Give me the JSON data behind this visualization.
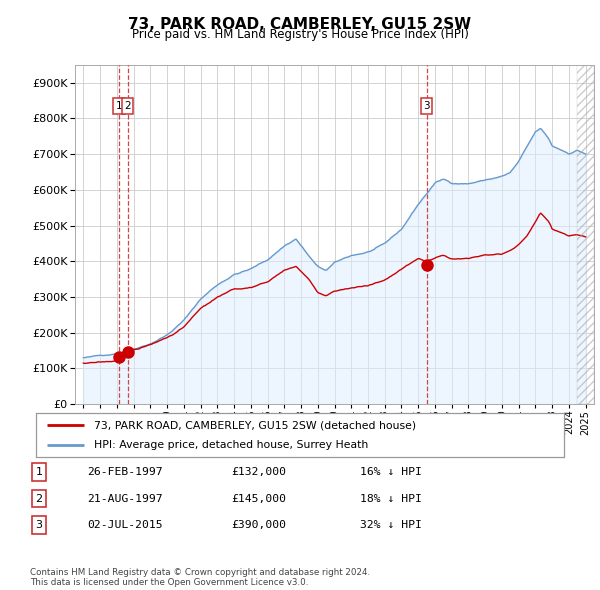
{
  "title": "73, PARK ROAD, CAMBERLEY, GU15 2SW",
  "subtitle": "Price paid vs. HM Land Registry's House Price Index (HPI)",
  "legend_label_red": "73, PARK ROAD, CAMBERLEY, GU15 2SW (detached house)",
  "legend_label_blue": "HPI: Average price, detached house, Surrey Heath",
  "transactions": [
    {
      "num": "1",
      "date_label": "26-FEB-1997",
      "date_x": 1997.15,
      "price": 132000,
      "pct": "16% ↓ HPI"
    },
    {
      "num": "2",
      "date_label": "21-AUG-1997",
      "date_x": 1997.64,
      "price": 145000,
      "pct": "18% ↓ HPI"
    },
    {
      "num": "3",
      "date_label": "02-JUL-2015",
      "date_x": 2015.5,
      "price": 390000,
      "pct": "32% ↓ HPI"
    }
  ],
  "footer": "Contains HM Land Registry data © Crown copyright and database right 2024.\nThis data is licensed under the Open Government Licence v3.0.",
  "red_color": "#cc0000",
  "blue_color": "#6699cc",
  "blue_fill": "#ddeeff",
  "vline_color": "#cc3333",
  "grid_color": "#cccccc",
  "ylim": [
    0,
    950000
  ],
  "yticks": [
    0,
    100000,
    200000,
    300000,
    400000,
    500000,
    600000,
    700000,
    800000,
    900000
  ],
  "xlim": [
    1994.5,
    2025.5
  ],
  "hatch_start": 2024.5
}
